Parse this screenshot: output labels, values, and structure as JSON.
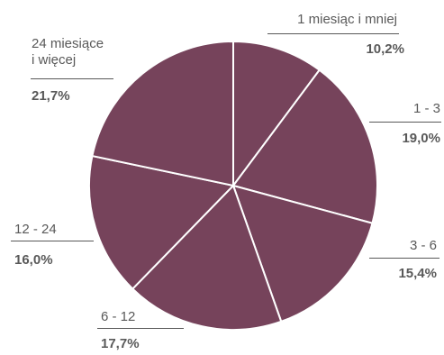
{
  "chart_data": {
    "type": "pie",
    "start_angle_deg": 0,
    "direction": "clockwise",
    "slices": [
      {
        "label": "1 miesiąc i mniej",
        "value": 10.2,
        "value_label": "10,2%"
      },
      {
        "label": "1 - 3",
        "value": 19.0,
        "value_label": "19,0%"
      },
      {
        "label": "3 - 6",
        "value": 15.4,
        "value_label": "15,4%"
      },
      {
        "label": "6 - 12",
        "value": 17.7,
        "value_label": "17,7%"
      },
      {
        "label": "12 - 24",
        "value": 16.0,
        "value_label": "16,0%"
      },
      {
        "label": "24 miesiące i więcej",
        "value": 21.7,
        "value_label": "21,7%"
      }
    ],
    "colors": {
      "slice": "#76435b",
      "border": "#ffffff",
      "text": "#595959"
    }
  },
  "labels": [
    {
      "lines": [
        "1 miesiąc i mniej"
      ]
    },
    {
      "lines": [
        "1 - 3"
      ]
    },
    {
      "lines": [
        "3 - 6"
      ]
    },
    {
      "lines": [
        "6 - 12"
      ]
    },
    {
      "lines": [
        "12 - 24"
      ]
    },
    {
      "lines": [
        "24 miesiące",
        "i więcej"
      ]
    }
  ]
}
